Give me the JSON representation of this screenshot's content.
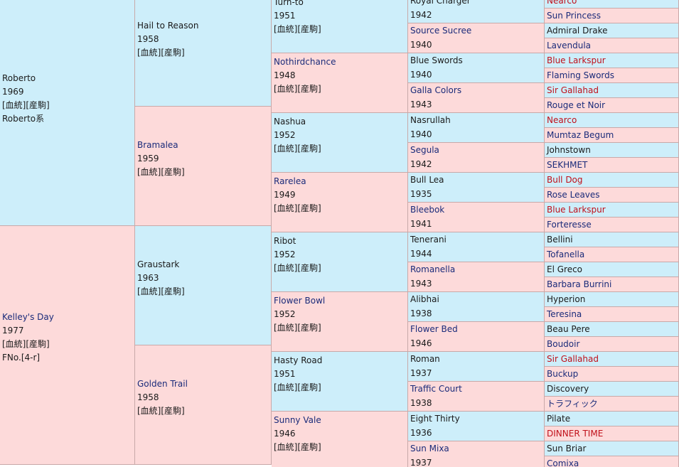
{
  "pedigree": {
    "gen1": [
      {
        "name": "Roberto",
        "year": "1969",
        "links": "[血統][産駒]",
        "extra": "Roberto系",
        "color": "blue",
        "style": "plain"
      },
      {
        "name": "Kelley's Day",
        "year": "1977",
        "links": "[血統][産駒]",
        "extra": "FNo.[4-r]",
        "color": "pink",
        "style": "link"
      }
    ],
    "gen2": [
      {
        "name": "Hail to Reason",
        "year": "1958",
        "links": "[血統][産駒]",
        "color": "blue",
        "style": "plain"
      },
      {
        "name": "Bramalea",
        "year": "1959",
        "links": "[血統][産駒]",
        "color": "pink",
        "style": "link"
      },
      {
        "name": "Graustark",
        "year": "1963",
        "links": "[血統][産駒]",
        "color": "blue",
        "style": "plain"
      },
      {
        "name": "Golden Trail",
        "year": "1958",
        "links": "[血統][産駒]",
        "color": "pink",
        "style": "link"
      }
    ],
    "gen3": [
      {
        "name": "Turn-to",
        "year": "1951",
        "links": "[血統][産駒]",
        "color": "blue",
        "style": "plain"
      },
      {
        "name": "Nothirdchance",
        "year": "1948",
        "links": "[血統][産駒]",
        "color": "pink",
        "style": "link"
      },
      {
        "name": "Nashua",
        "year": "1952",
        "links": "[血統][産駒]",
        "color": "blue",
        "style": "plain"
      },
      {
        "name": "Rarelea",
        "year": "1949",
        "links": "[血統][産駒]",
        "color": "pink",
        "style": "link"
      },
      {
        "name": "Ribot",
        "year": "1952",
        "links": "[血統][産駒]",
        "color": "blue",
        "style": "plain"
      },
      {
        "name": "Flower Bowl",
        "year": "1952",
        "links": "[血統][産駒]",
        "color": "pink",
        "style": "link"
      },
      {
        "name": "Hasty Road",
        "year": "1951",
        "links": "[血統][産駒]",
        "color": "blue",
        "style": "plain"
      },
      {
        "name": "Sunny Vale",
        "year": "1946",
        "links": "[血統][産駒]",
        "color": "pink",
        "style": "link"
      }
    ],
    "gen4": [
      {
        "name": "Royal Charger",
        "year": "1942",
        "color": "blue",
        "style": "plain"
      },
      {
        "name": "Source Sucree",
        "year": "1940",
        "color": "pink",
        "style": "link"
      },
      {
        "name": "Blue Swords",
        "year": "1940",
        "color": "blue",
        "style": "plain"
      },
      {
        "name": "Galla Colors",
        "year": "1943",
        "color": "pink",
        "style": "link"
      },
      {
        "name": "Nasrullah",
        "year": "1940",
        "color": "blue",
        "style": "plain"
      },
      {
        "name": "Segula",
        "year": "1942",
        "color": "pink",
        "style": "link"
      },
      {
        "name": "Bull Lea",
        "year": "1935",
        "color": "blue",
        "style": "plain"
      },
      {
        "name": "Bleebok",
        "year": "1941",
        "color": "pink",
        "style": "link"
      },
      {
        "name": "Tenerani",
        "year": "1944",
        "color": "blue",
        "style": "plain"
      },
      {
        "name": "Romanella",
        "year": "1943",
        "color": "pink",
        "style": "link"
      },
      {
        "name": "Alibhai",
        "year": "1938",
        "color": "blue",
        "style": "plain"
      },
      {
        "name": "Flower Bed",
        "year": "1946",
        "color": "pink",
        "style": "link"
      },
      {
        "name": "Roman",
        "year": "1937",
        "color": "blue",
        "style": "plain"
      },
      {
        "name": "Traffic Court",
        "year": "1938",
        "color": "pink",
        "style": "link"
      },
      {
        "name": "Eight Thirty",
        "year": "1936",
        "color": "blue",
        "style": "plain"
      },
      {
        "name": "Sun Mixa",
        "year": "1937",
        "color": "pink",
        "style": "link"
      }
    ],
    "gen5": [
      {
        "name": "Nearco",
        "color": "blue",
        "style": "red"
      },
      {
        "name": "Sun Princess",
        "color": "pink",
        "style": "link"
      },
      {
        "name": "Admiral Drake",
        "color": "blue",
        "style": "plain"
      },
      {
        "name": "Lavendula",
        "color": "pink",
        "style": "link"
      },
      {
        "name": "Blue Larkspur",
        "color": "blue",
        "style": "red"
      },
      {
        "name": "Flaming Swords",
        "color": "pink",
        "style": "link"
      },
      {
        "name": "Sir Gallahad",
        "color": "blue",
        "style": "red"
      },
      {
        "name": "Rouge et Noir",
        "color": "pink",
        "style": "link"
      },
      {
        "name": "Nearco",
        "color": "blue",
        "style": "red"
      },
      {
        "name": "Mumtaz Begum",
        "color": "pink",
        "style": "link"
      },
      {
        "name": "Johnstown",
        "color": "blue",
        "style": "plain"
      },
      {
        "name": "SEKHMET",
        "color": "pink",
        "style": "link"
      },
      {
        "name": "Bull Dog",
        "color": "blue",
        "style": "red"
      },
      {
        "name": "Rose Leaves",
        "color": "pink",
        "style": "link"
      },
      {
        "name": "Blue Larkspur",
        "color": "blue",
        "style": "red"
      },
      {
        "name": "Forteresse",
        "color": "pink",
        "style": "link"
      },
      {
        "name": "Bellini",
        "color": "blue",
        "style": "plain"
      },
      {
        "name": "Tofanella",
        "color": "pink",
        "style": "link"
      },
      {
        "name": "El Greco",
        "color": "blue",
        "style": "plain"
      },
      {
        "name": "Barbara Burrini",
        "color": "pink",
        "style": "link"
      },
      {
        "name": "Hyperion",
        "color": "blue",
        "style": "plain"
      },
      {
        "name": "Teresina",
        "color": "pink",
        "style": "link"
      },
      {
        "name": "Beau Pere",
        "color": "blue",
        "style": "plain"
      },
      {
        "name": "Boudoir",
        "color": "pink",
        "style": "link"
      },
      {
        "name": "Sir Gallahad",
        "color": "blue",
        "style": "red"
      },
      {
        "name": "Buckup",
        "color": "pink",
        "style": "link"
      },
      {
        "name": "Discovery",
        "color": "blue",
        "style": "plain"
      },
      {
        "name": "トラフィック",
        "color": "pink",
        "style": "link"
      },
      {
        "name": "Pilate",
        "color": "blue",
        "style": "plain"
      },
      {
        "name": "DINNER TIME",
        "color": "pink",
        "style": "red"
      },
      {
        "name": "Sun Briar",
        "color": "blue",
        "style": "plain"
      },
      {
        "name": "Comixa",
        "color": "pink",
        "style": "link"
      }
    ]
  }
}
